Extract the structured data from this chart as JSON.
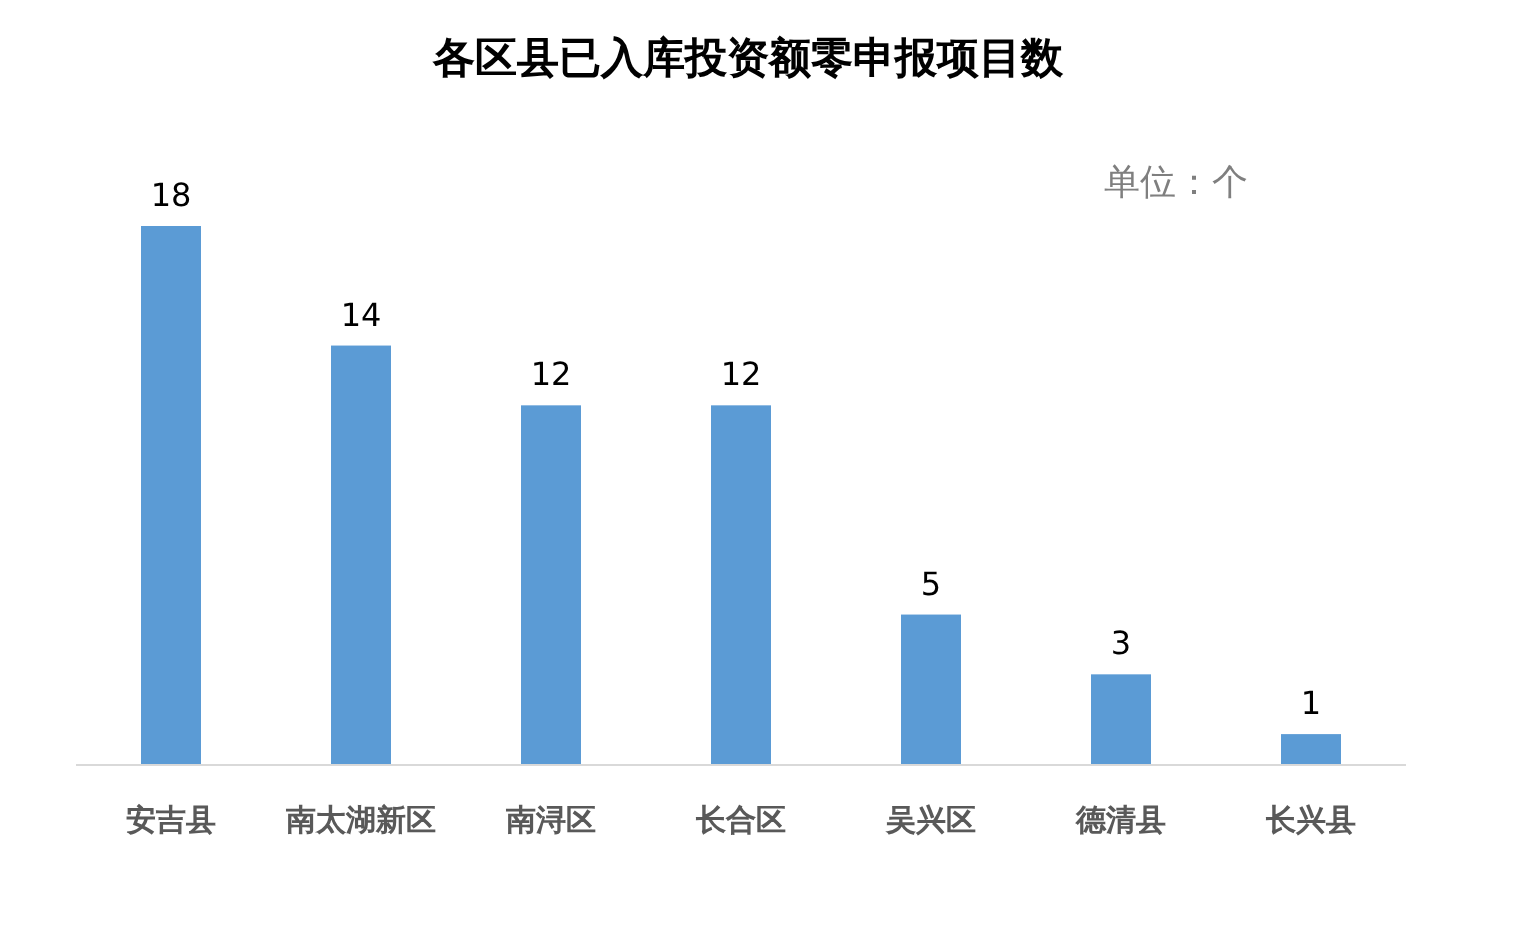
{
  "chart_data": {
    "type": "bar",
    "title": "各区县已入库投资额零申报项目数",
    "categories": [
      "安吉县",
      "南太湖新区",
      "南浔区",
      "长合区",
      "吴兴区",
      "德清县",
      "长兴县"
    ],
    "values": [
      18,
      14,
      12,
      12,
      5,
      3,
      1
    ],
    "color": "#5b9bd5",
    "data_labels": true,
    "annotations": [
      "单位：个"
    ]
  }
}
